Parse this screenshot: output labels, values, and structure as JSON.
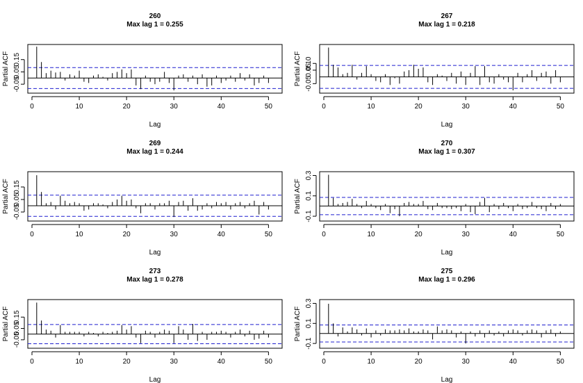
{
  "chart_data": [
    {
      "type": "bar",
      "title": "260",
      "subtitle": "Max lag 1 = 0.255",
      "xlabel": "Lag",
      "ylabel": "Partial ACF",
      "xlim": [
        0,
        52
      ],
      "ylim": [
        -0.1,
        0.25
      ],
      "xticks": [
        "0",
        "10",
        "20",
        "30",
        "40",
        "50"
      ],
      "yticks": [
        "-0.05",
        "0.05",
        "0.15"
      ],
      "conf_band": [
        -0.085,
        0.085
      ],
      "x": [
        1,
        2,
        3,
        4,
        5,
        6,
        7,
        8,
        9,
        10,
        11,
        12,
        13,
        14,
        15,
        16,
        17,
        18,
        19,
        20,
        21,
        22,
        23,
        24,
        25,
        26,
        27,
        28,
        29,
        30,
        31,
        32,
        33,
        34,
        35,
        36,
        37,
        38,
        39,
        40,
        41,
        42,
        43,
        44,
        45,
        46,
        47,
        48,
        49,
        50
      ],
      "values": [
        0.255,
        0.13,
        0.04,
        0.06,
        0.045,
        0.05,
        -0.02,
        0.03,
        0.02,
        0.06,
        -0.03,
        -0.04,
        0.02,
        0.03,
        0.01,
        -0.02,
        0.04,
        0.05,
        0.07,
        0.04,
        0.07,
        -0.06,
        -0.09,
        0.02,
        -0.03,
        -0.05,
        -0.03,
        0.05,
        -0.04,
        -0.1,
        0.02,
        0.03,
        -0.03,
        0.02,
        -0.05,
        0.03,
        -0.07,
        -0.06,
        0.02,
        -0.04,
        -0.02,
        0.02,
        -0.03,
        0.04,
        -0.02,
        0.03,
        -0.06,
        -0.04,
        0.02,
        -0.04
      ]
    },
    {
      "type": "bar",
      "title": "267",
      "subtitle": "Max lag 1 = 0.218",
      "xlabel": "Lag",
      "ylabel": "Partial ACF",
      "xlim": [
        0,
        52
      ],
      "ylim": [
        -0.1,
        0.22
      ],
      "xticks": [
        "0",
        "10",
        "20",
        "30",
        "40",
        "50"
      ],
      "yticks": [
        "-0.05",
        "0.05",
        "0.10"
      ],
      "conf_band": [
        -0.085,
        0.085
      ],
      "x": [
        1,
        2,
        3,
        4,
        5,
        6,
        7,
        8,
        9,
        10,
        11,
        12,
        13,
        14,
        15,
        16,
        17,
        18,
        19,
        20,
        21,
        22,
        23,
        24,
        25,
        26,
        27,
        28,
        29,
        30,
        31,
        32,
        33,
        34,
        35,
        36,
        37,
        38,
        39,
        40,
        41,
        42,
        43,
        44,
        45,
        46,
        47,
        48,
        49,
        50
      ],
      "values": [
        0.218,
        0.09,
        0.07,
        0.02,
        0.03,
        0.09,
        -0.02,
        0.03,
        0.08,
        0.02,
        -0.03,
        -0.04,
        0.02,
        -0.06,
        -0.01,
        -0.05,
        0.04,
        0.05,
        0.09,
        0.06,
        0.07,
        -0.04,
        -0.06,
        0.02,
        0.01,
        -0.03,
        0.03,
        -0.05,
        0.04,
        -0.06,
        0.03,
        0.08,
        -0.06,
        0.08,
        -0.04,
        -0.05,
        0.02,
        -0.02,
        -0.04,
        -0.1,
        0.03,
        -0.04,
        0.02,
        0.05,
        -0.03,
        0.03,
        0.04,
        -0.05,
        0.05,
        -0.04
      ]
    },
    {
      "type": "bar",
      "title": "269",
      "subtitle": "Max lag 1 = 0.244",
      "xlabel": "Lag",
      "ylabel": "Partial ACF",
      "xlim": [
        0,
        52
      ],
      "ylim": [
        -0.1,
        0.25
      ],
      "xticks": [
        "0",
        "10",
        "20",
        "30",
        "40",
        "50"
      ],
      "yticks": [
        "-0.05",
        "0.05",
        "0.15"
      ],
      "conf_band": [
        -0.085,
        0.085
      ],
      "x": [
        1,
        2,
        3,
        4,
        5,
        6,
        7,
        8,
        9,
        10,
        11,
        12,
        13,
        14,
        15,
        16,
        17,
        18,
        19,
        20,
        21,
        22,
        23,
        24,
        25,
        26,
        27,
        28,
        29,
        30,
        31,
        32,
        33,
        34,
        35,
        36,
        37,
        38,
        39,
        40,
        41,
        42,
        43,
        44,
        45,
        46,
        47,
        48,
        49,
        50
      ],
      "values": [
        0.244,
        0.11,
        0.02,
        0.03,
        -0.03,
        0.08,
        0.04,
        0.02,
        0.03,
        0.02,
        -0.04,
        -0.03,
        0.02,
        0.02,
        0.01,
        -0.02,
        0.03,
        0.05,
        0.08,
        0.04,
        0.05,
        -0.02,
        -0.06,
        0.02,
        0.02,
        -0.03,
        0.02,
        0.02,
        0.04,
        -0.09,
        0.03,
        0.04,
        -0.04,
        0.06,
        -0.04,
        -0.03,
        0.02,
        -0.02,
        0.03,
        0.02,
        0.03,
        -0.03,
        0.02,
        0.03,
        -0.02,
        0.02,
        0.04,
        -0.07,
        0.03,
        -0.03
      ]
    },
    {
      "type": "bar",
      "title": "270",
      "subtitle": "Max lag 1 = 0.307",
      "xlabel": "Lag",
      "ylabel": "Partial ACF",
      "xlim": [
        0,
        52
      ],
      "ylim": [
        -0.12,
        0.31
      ],
      "xticks": [
        "0",
        "10",
        "20",
        "30",
        "40",
        "50"
      ],
      "yticks": [
        "-0.1",
        "0.1",
        "0.3"
      ],
      "conf_band": [
        -0.085,
        0.085
      ],
      "x": [
        1,
        2,
        3,
        4,
        5,
        6,
        7,
        8,
        9,
        10,
        11,
        12,
        13,
        14,
        15,
        16,
        17,
        18,
        19,
        20,
        21,
        22,
        23,
        24,
        25,
        26,
        27,
        28,
        29,
        30,
        31,
        32,
        33,
        34,
        35,
        36,
        37,
        38,
        39,
        40,
        41,
        42,
        43,
        44,
        45,
        46,
        47,
        48,
        49,
        50
      ],
      "values": [
        0.307,
        0.08,
        0.02,
        0.03,
        0.04,
        0.07,
        0.02,
        -0.02,
        0.05,
        0.02,
        -0.02,
        -0.04,
        0.02,
        -0.07,
        -0.03,
        -0.1,
        0.03,
        0.04,
        0.02,
        0.02,
        0.05,
        -0.03,
        -0.04,
        0.03,
        -0.02,
        -0.02,
        -0.03,
        -0.02,
        -0.05,
        0.02,
        -0.06,
        -0.08,
        0.04,
        0.08,
        -0.06,
        0.02,
        -0.03,
        0.03,
        -0.02,
        -0.05,
        0.02,
        -0.03,
        -0.02,
        0.04,
        -0.02,
        -0.03,
        -0.05,
        0.03,
        -0.03,
        0.02
      ]
    },
    {
      "type": "bar",
      "title": "273",
      "subtitle": "Max lag 1 = 0.278",
      "xlabel": "Lag",
      "ylabel": "Partial ACF",
      "xlim": [
        0,
        52
      ],
      "ylim": [
        -0.1,
        0.28
      ],
      "xticks": [
        "0",
        "10",
        "20",
        "30",
        "40",
        "50"
      ],
      "yticks": [
        "-0.05",
        "0.05",
        "0.15"
      ],
      "conf_band": [
        -0.085,
        0.085
      ],
      "x": [
        1,
        2,
        3,
        4,
        5,
        6,
        7,
        8,
        9,
        10,
        11,
        12,
        13,
        14,
        15,
        16,
        17,
        18,
        19,
        20,
        21,
        22,
        23,
        24,
        25,
        26,
        27,
        28,
        29,
        30,
        31,
        32,
        33,
        34,
        35,
        36,
        37,
        38,
        39,
        40,
        41,
        42,
        43,
        44,
        45,
        46,
        47,
        48,
        49,
        50
      ],
      "values": [
        0.278,
        0.12,
        0.04,
        0.03,
        -0.03,
        0.08,
        0.02,
        0.02,
        0.02,
        0.02,
        -0.02,
        0.02,
        0.01,
        -0.02,
        0.02,
        0.01,
        0.02,
        0.03,
        0.08,
        0.04,
        0.07,
        -0.03,
        -0.08,
        0.03,
        0.02,
        -0.03,
        0.02,
        0.04,
        0.03,
        -0.08,
        0.07,
        0.04,
        -0.05,
        0.09,
        -0.06,
        0.02,
        -0.05,
        0.02,
        0.02,
        0.03,
        0.02,
        -0.03,
        0.02,
        0.04,
        -0.02,
        0.03,
        -0.05,
        -0.04,
        0.03,
        -0.03
      ]
    },
    {
      "type": "bar",
      "title": "275",
      "subtitle": "Max lag 1 = 0.296",
      "xlabel": "Lag",
      "ylabel": "Partial ACF",
      "xlim": [
        0,
        52
      ],
      "ylim": [
        -0.12,
        0.31
      ],
      "xticks": [
        "0",
        "10",
        "20",
        "30",
        "40",
        "50"
      ],
      "yticks": [
        "-0.1",
        "0.1",
        "0.3"
      ],
      "conf_band": [
        -0.085,
        0.085
      ],
      "x": [
        1,
        2,
        3,
        4,
        5,
        6,
        7,
        8,
        9,
        10,
        11,
        12,
        13,
        14,
        15,
        16,
        17,
        18,
        19,
        20,
        21,
        22,
        23,
        24,
        25,
        26,
        27,
        28,
        29,
        30,
        31,
        32,
        33,
        34,
        35,
        36,
        37,
        38,
        39,
        40,
        41,
        42,
        43,
        44,
        45,
        46,
        47,
        48,
        49,
        50
      ],
      "values": [
        0.296,
        0.1,
        -0.03,
        0.06,
        0.02,
        0.06,
        0.04,
        -0.02,
        0.05,
        -0.04,
        0.03,
        -0.02,
        0.04,
        0.03,
        0.03,
        0.04,
        0.03,
        0.05,
        0.02,
        0.02,
        0.04,
        0.03,
        -0.06,
        0.07,
        0.03,
        0.04,
        0.03,
        -0.04,
        0.02,
        -0.1,
        0.02,
        -0.03,
        0.03,
        -0.04,
        0.03,
        -0.02,
        0.02,
        -0.03,
        0.03,
        0.04,
        0.03,
        -0.02,
        0.03,
        0.04,
        0.03,
        -0.04,
        0.03,
        0.04,
        -0.03,
        0.02
      ]
    }
  ]
}
